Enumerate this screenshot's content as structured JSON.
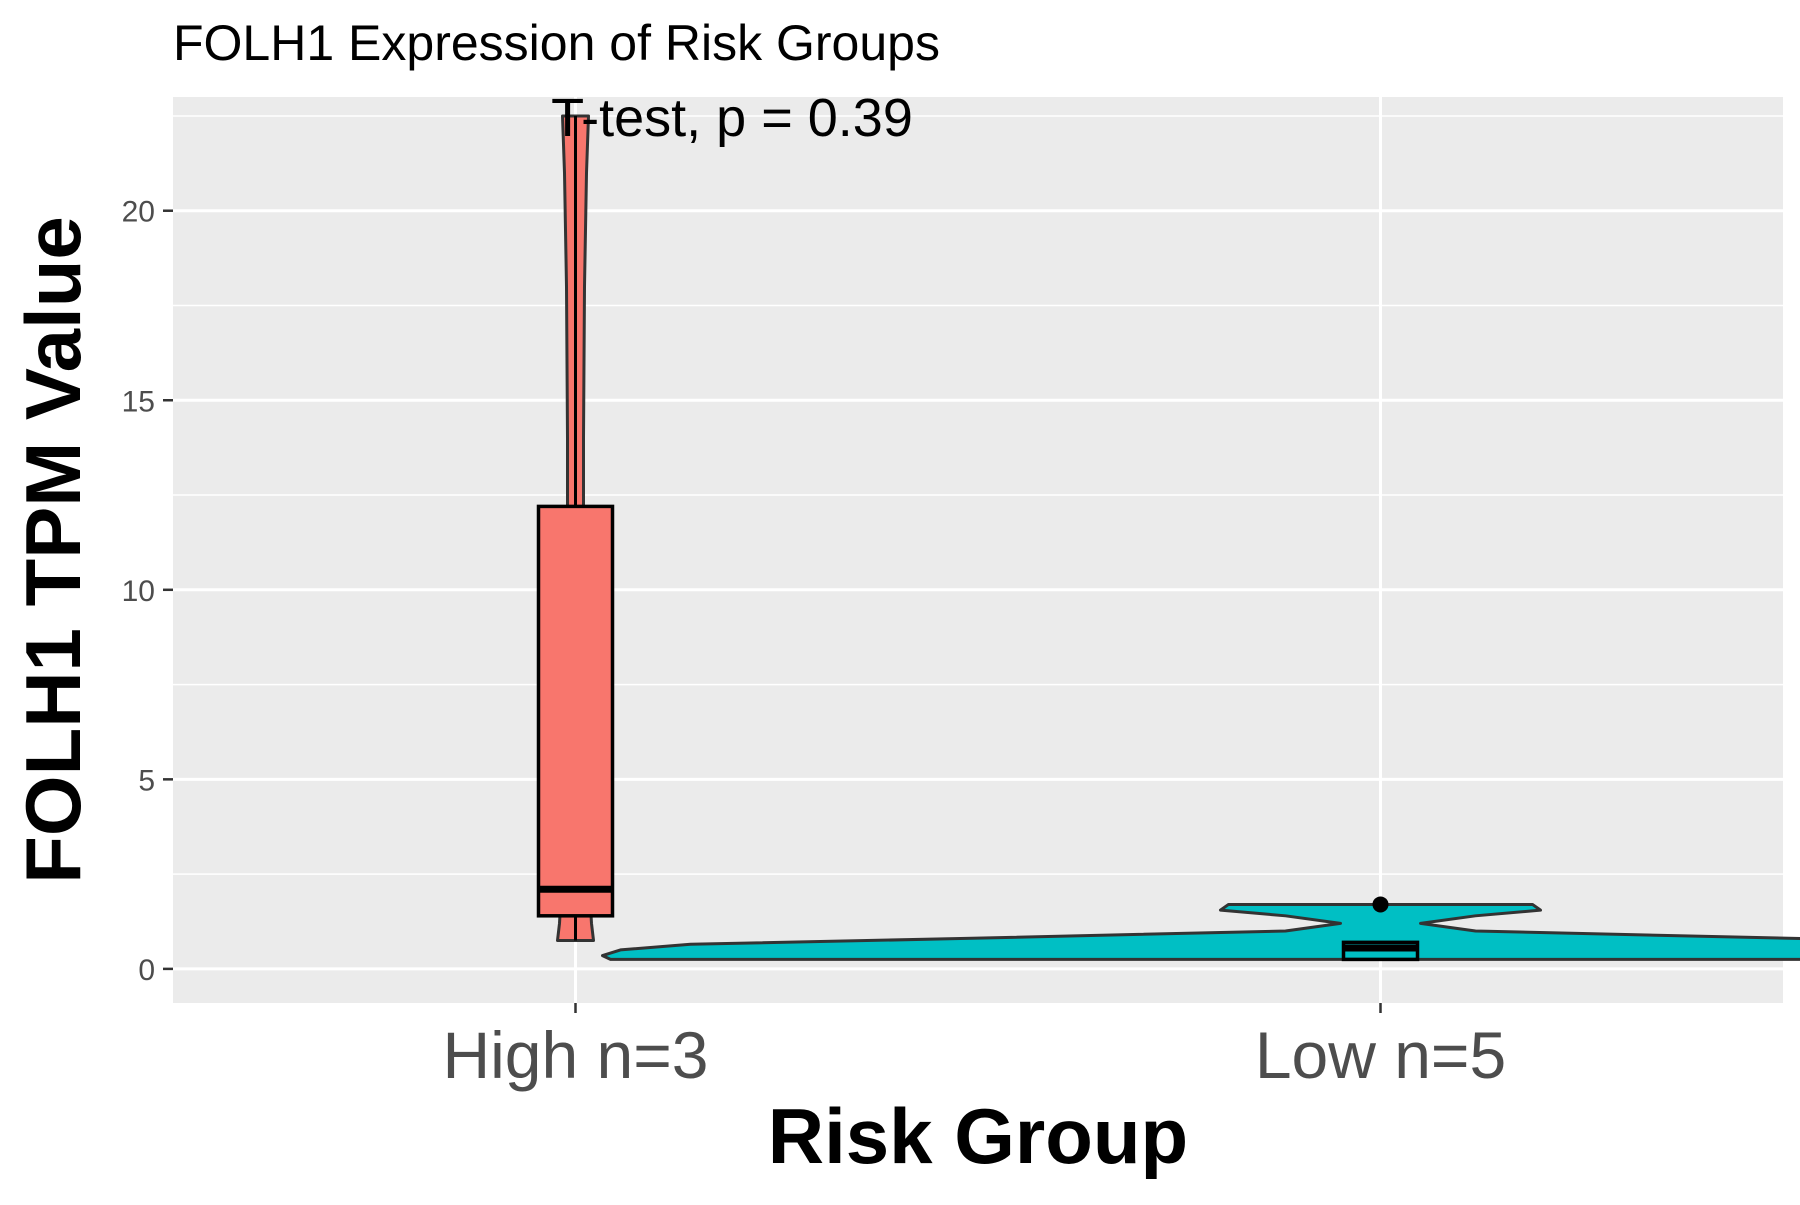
{
  "chart_data": {
    "type": "violin",
    "title": "FOLH1 Expression of Risk Groups",
    "annotation": "T-test, p = 0.39",
    "xlabel": "Risk Group",
    "ylabel": "FOLH1 TPM Value",
    "ylim": [
      -0.9,
      23.0
    ],
    "yticks": [
      0,
      5,
      10,
      15,
      20
    ],
    "ytick_labels": [
      "0",
      "5",
      "10",
      "15",
      "20"
    ],
    "grid": true,
    "legend": "none",
    "categories": [
      "High n=3",
      "Low n=5"
    ],
    "groups": [
      {
        "label": "High n=3",
        "color": "#F8766D",
        "violin_range": [
          0.75,
          22.5
        ],
        "box": {
          "lower_whisker": 0.75,
          "q1": 1.4,
          "median": 2.1,
          "q3": 12.2,
          "upper_whisker": 22.5
        },
        "outliers": []
      },
      {
        "label": "Low n=5",
        "color": "#00BFC4",
        "violin_range": [
          0.25,
          1.7
        ],
        "box": {
          "lower_whisker": 0.25,
          "q1": 0.25,
          "median": 0.55,
          "q3": 0.7,
          "upper_whisker": 0.7
        },
        "outliers": [
          1.7
        ]
      }
    ]
  }
}
